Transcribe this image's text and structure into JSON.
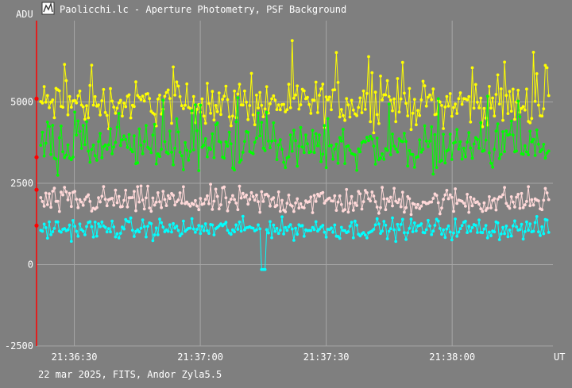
{
  "window": {
    "title": "Paolicchi.lc - Aperture Photometry, PSF Background",
    "icon": "lightcurve-app-icon"
  },
  "footer": {
    "info": "22 mar 2025, FITS, Andor Zyla5.5"
  },
  "colors": {
    "background": "#7f7f7f",
    "grid": "#a6a6a6",
    "text": "#ffffff",
    "marker": "#ff0000"
  },
  "chart_data": {
    "type": "line",
    "title": "Paolicchi.lc - Aperture Photometry, PSF Background",
    "ylabel": "ADU",
    "xlabel": "UT",
    "ylim": [
      -2500,
      7500
    ],
    "yticks": [
      -2500,
      0,
      2500,
      5000
    ],
    "ytick_labels": [
      "-2500",
      "0",
      "2500",
      "5000"
    ],
    "xlim": [
      "21:36:21",
      "21:38:24"
    ],
    "xticks": [
      "21:36:30",
      "21:37:00",
      "21:37:30",
      "21:38:00"
    ],
    "grid": true,
    "series": [
      {
        "color": "#ffff00",
        "mean": 4950,
        "spread": 420,
        "spikes": 1
      },
      {
        "color": "#00ff00",
        "mean": 3600,
        "spread": 420,
        "spikes": 1
      },
      {
        "color": "#ffd8d8",
        "mean": 1950,
        "spread": 260,
        "spikes": 0
      },
      {
        "color": "#00ffff",
        "mean": 1100,
        "spread": 190,
        "spikes": 0
      }
    ],
    "dip": {
      "series_index": 3,
      "time": "21:37:15",
      "value": -150
    },
    "marker_values": [
      5100,
      3300,
      2300,
      1200
    ]
  }
}
